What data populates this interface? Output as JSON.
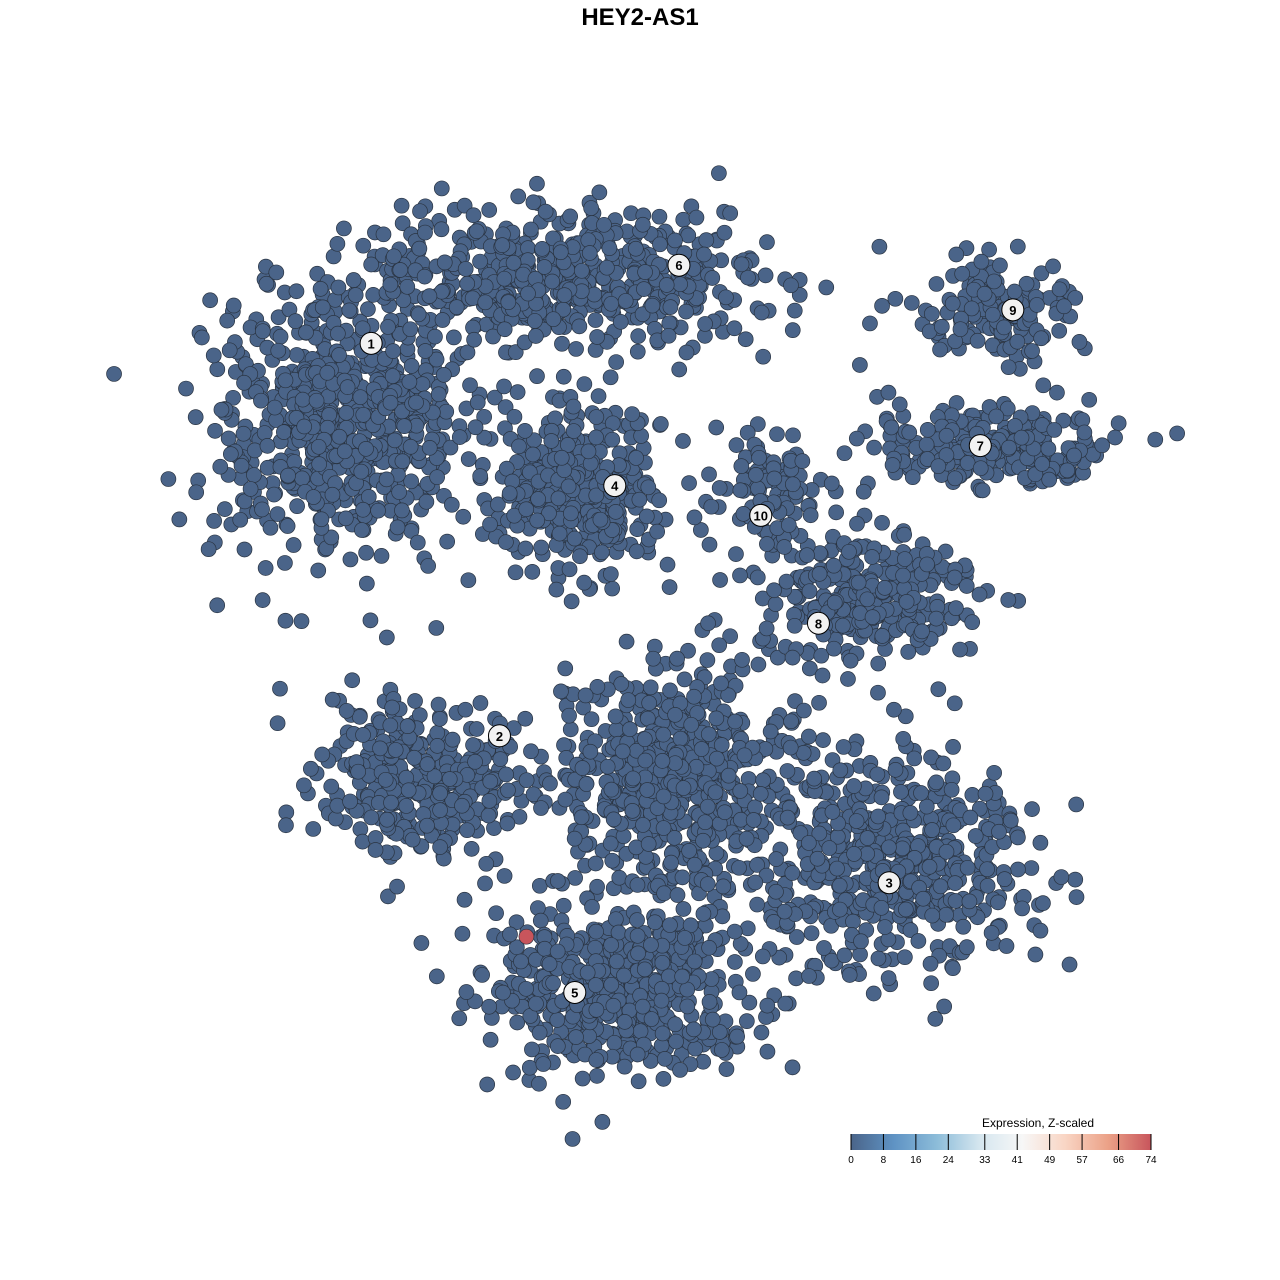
{
  "chart_data": {
    "type": "scatter",
    "title": "HEY2-AS1",
    "xlabel": "",
    "ylabel": "",
    "xlim": [
      -50,
      50
    ],
    "ylim": [
      -50,
      50
    ],
    "grid": false,
    "axes_visible": false,
    "point_color_low": "#4a6489",
    "point_color_high": "#c8555c",
    "clusters": [
      {
        "label": "1",
        "label_pos": [
          -31.6,
          31.9
        ],
        "blobs": [
          {
            "center": [
              -34.9,
              23.7
            ],
            "spread": [
              14,
              14
            ],
            "n": 700
          }
        ],
        "expression": 0
      },
      {
        "label": "2",
        "label_pos": [
          -17.8,
          -10.3
        ],
        "blobs": [
          {
            "center": [
              -26.3,
              -15.1
            ],
            "spread": [
              10.8,
              8.6
            ],
            "n": 350
          }
        ],
        "expression": 0
      },
      {
        "label": "3",
        "label_pos": [
          24.1,
          -26.1
        ],
        "blobs": [
          {
            "center": [
              24.2,
              -23.7
            ],
            "spread": [
              15,
              10.8
            ],
            "n": 550
          },
          {
            "center": [
              1.6,
              -15.1
            ],
            "spread": [
              14,
              11.8
            ],
            "n": 650
          }
        ],
        "expression": 0
      },
      {
        "label": "4",
        "label_pos": [
          -5.4,
          16.6
        ],
        "blobs": [
          {
            "center": [
              -9.1,
              16.1
            ],
            "spread": [
              8.6,
              8.6
            ],
            "n": 400
          }
        ],
        "expression": 0
      },
      {
        "label": "5",
        "label_pos": [
          -9.7,
          -37.9
        ],
        "blobs": [
          {
            "center": [
              -4.8,
              -37.6
            ],
            "spread": [
              14,
              8.6
            ],
            "n": 550
          }
        ],
        "expression": 0
      },
      {
        "label": "6",
        "label_pos": [
          1.5,
          40.3
        ],
        "blobs": [
          {
            "center": [
              -11.3,
              38.7
            ],
            "spread": [
              21.5,
              7.5
            ],
            "n": 600
          }
        ],
        "expression": 0
      },
      {
        "label": "7",
        "label_pos": [
          33.9,
          20.9
        ],
        "blobs": [
          {
            "center": [
              35.0,
              20.4
            ],
            "spread": [
              12.9,
              4.3
            ],
            "n": 250
          }
        ],
        "expression": 0
      },
      {
        "label": "8",
        "label_pos": [
          16.5,
          1.8
        ],
        "blobs": [
          {
            "center": [
              21.9,
              4.3
            ],
            "spread": [
              11.8,
              7.5
            ],
            "n": 300
          }
        ],
        "expression": 0
      },
      {
        "label": "9",
        "label_pos": [
          37.4,
          35.5
        ],
        "blobs": [
          {
            "center": [
              35.0,
              35.5
            ],
            "spread": [
              8.6,
              5.4
            ],
            "n": 150
          }
        ],
        "expression": 0
      },
      {
        "label": "10",
        "label_pos": [
          10.3,
          13.4
        ],
        "blobs": [
          {
            "center": [
              10.8,
              16.1
            ],
            "spread": [
              5.4,
              6.5
            ],
            "n": 100
          }
        ],
        "expression": 0
      }
    ],
    "highlight_points": [
      {
        "x": -14.9,
        "y": -31.9,
        "expression": 74
      }
    ],
    "legend": {
      "title": "Expression, Z-scaled",
      "placement": "bottom-right",
      "ticks": [
        "0",
        "8",
        "16",
        "24",
        "33",
        "41",
        "49",
        "57",
        "66",
        "74"
      ],
      "range": [
        0,
        74
      ],
      "colors": [
        "#4a6489",
        "#5f93c4",
        "#8cbcd9",
        "#d5e6ef",
        "#f7f7f7",
        "#f9d5c4",
        "#eba187",
        "#c8555c"
      ]
    }
  }
}
